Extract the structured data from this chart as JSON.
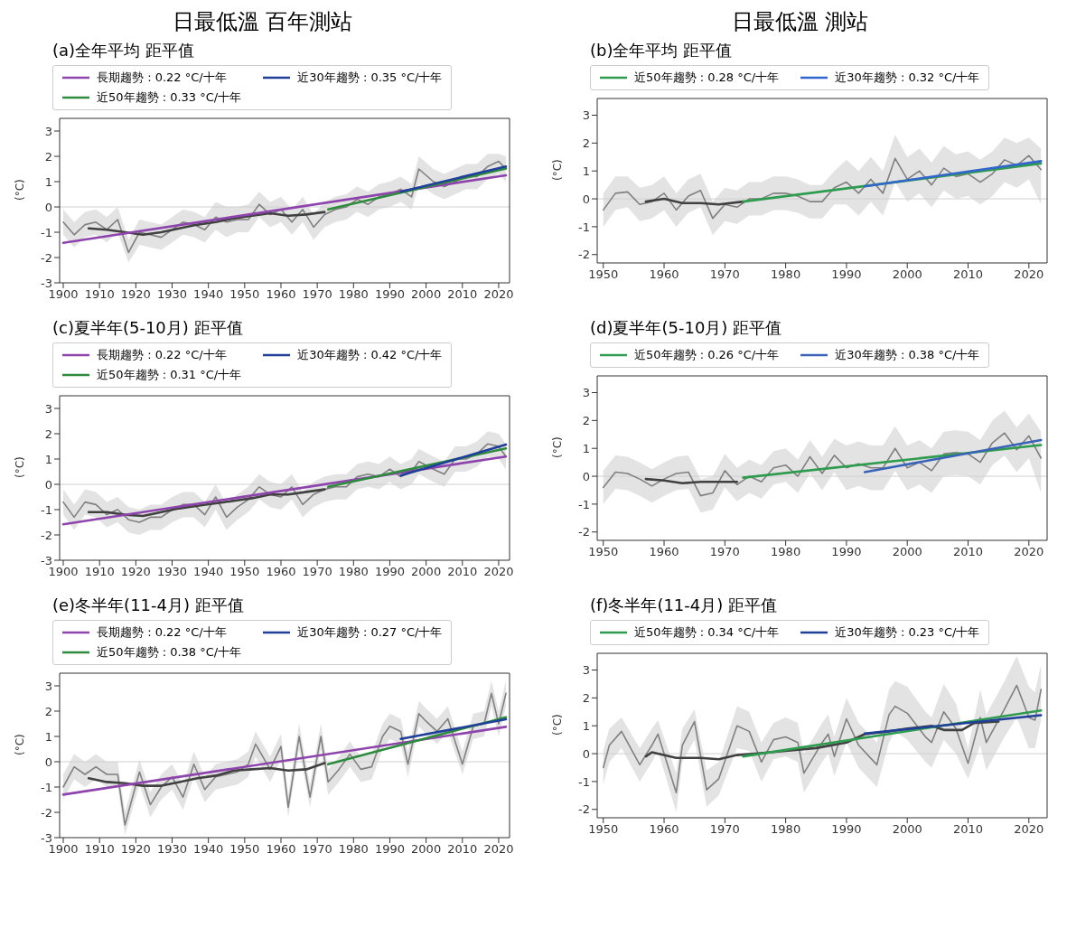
{
  "chart_data": [
    {
      "type": "line",
      "annotations": [
        "日最低溫 百年測站"
      ],
      "title": "(a)全年平均 距平值",
      "ylabel": "(°C)",
      "xlim": [
        1899,
        2023
      ],
      "xticks": [
        1900,
        1910,
        1920,
        1930,
        1940,
        1950,
        1960,
        1970,
        1980,
        1990,
        2000,
        2010,
        2020
      ],
      "ylim": [
        -3,
        3.5
      ],
      "yticks": [
        -3,
        -2,
        -1,
        0,
        1,
        2,
        3
      ],
      "legend": "top",
      "ref_lines": [
        {
          "axis": "y",
          "value": 0,
          "color": "#d0d0d0"
        }
      ],
      "x": [
        1900,
        1903,
        1906,
        1909,
        1912,
        1915,
        1918,
        1921,
        1924,
        1927,
        1930,
        1933,
        1936,
        1939,
        1942,
        1945,
        1948,
        1951,
        1954,
        1957,
        1960,
        1963,
        1966,
        1969,
        1972,
        1975,
        1978,
        1981,
        1984,
        1987,
        1990,
        1993,
        1996,
        1998,
        2002,
        2005,
        2008,
        2011,
        2014,
        2017,
        2020,
        2022
      ],
      "series": [
        {
          "color": "#808080",
          "values": [
            -0.6,
            -1.1,
            -0.7,
            -0.6,
            -0.9,
            -0.5,
            -1.8,
            -1.0,
            -1.1,
            -1.2,
            -0.9,
            -0.6,
            -0.7,
            -0.9,
            -0.4,
            -0.6,
            -0.5,
            -0.5,
            0.1,
            -0.3,
            -0.1,
            -0.6,
            -0.1,
            -0.8,
            -0.3,
            -0.1,
            0.0,
            0.3,
            0.1,
            0.4,
            0.5,
            0.7,
            0.4,
            1.5,
            1.0,
            0.8,
            1.0,
            1.2,
            1.2,
            1.6,
            1.8,
            1.5
          ],
          "lower": [
            -1.1,
            -1.6,
            -1.2,
            -1.1,
            -1.4,
            -1.0,
            -2.2,
            -1.5,
            -1.6,
            -1.7,
            -1.4,
            -1.1,
            -1.2,
            -1.4,
            -0.9,
            -1.2,
            -1.0,
            -1.0,
            -0.4,
            -0.8,
            -0.6,
            -1.1,
            -0.6,
            -1.3,
            -0.8,
            -0.6,
            -0.5,
            -0.2,
            -0.4,
            -0.1,
            0.0,
            0.2,
            -0.1,
            0.9,
            0.5,
            0.3,
            0.5,
            0.7,
            0.7,
            1.1,
            1.3,
            1.0
          ],
          "upper": [
            -0.1,
            -0.6,
            -0.2,
            -0.1,
            -0.4,
            0.0,
            -1.3,
            -0.5,
            -0.6,
            -0.7,
            -0.4,
            -0.1,
            -0.2,
            -0.4,
            0.2,
            0.0,
            0.0,
            0.1,
            0.6,
            0.2,
            0.4,
            -0.1,
            0.4,
            -0.3,
            0.2,
            0.4,
            0.5,
            0.8,
            0.6,
            0.9,
            1.0,
            1.2,
            0.9,
            2.0,
            1.5,
            1.3,
            1.5,
            1.7,
            1.7,
            2.1,
            2.1,
            2.0
          ]
        },
        {
          "color": "#404040",
          "x": [
            1907,
            1912,
            1917,
            1922,
            1927,
            1932,
            1937,
            1942,
            1947,
            1952,
            1957,
            1962,
            1967,
            1972
          ],
          "values": [
            -0.85,
            -0.9,
            -1.0,
            -1.1,
            -1.0,
            -0.85,
            -0.7,
            -0.6,
            -0.45,
            -0.35,
            -0.25,
            -0.35,
            -0.3,
            -0.2
          ]
        },
        {
          "name": "長期趨勢 : 0.22 °C/十年",
          "color": "#8e44ad",
          "x": [
            1900,
            2022
          ],
          "values": [
            -1.42,
            1.25
          ]
        },
        {
          "name": "近50年趨勢 : 0.33 °C/十年",
          "color": "#2e8b3e",
          "x": [
            1973,
            2022
          ],
          "values": [
            -0.1,
            1.52
          ]
        },
        {
          "name": "近30年趨勢 : 0.35 °C/十年",
          "color": "#1f3f99",
          "x": [
            1993,
            2022
          ],
          "values": [
            0.6,
            1.6
          ]
        }
      ]
    },
    {
      "type": "line",
      "annotations": [
        "日最低溫 測站"
      ],
      "title": "(b)全年平均 距平值",
      "ylabel": "(°C)",
      "xlim": [
        1949,
        2023
      ],
      "xticks": [
        1950,
        1960,
        1970,
        1980,
        1990,
        2000,
        2010,
        2020
      ],
      "ylim": [
        -2.3,
        3.6
      ],
      "yticks": [
        -2,
        -1,
        0,
        1,
        2,
        3
      ],
      "legend": "top",
      "ref_lines": [
        {
          "axis": "y",
          "value": 0,
          "color": "#d0d0d0"
        }
      ],
      "x": [
        1950,
        1952,
        1954,
        1956,
        1958,
        1960,
        1962,
        1964,
        1966,
        1968,
        1970,
        1972,
        1974,
        1976,
        1978,
        1980,
        1982,
        1984,
        1986,
        1988,
        1990,
        1992,
        1994,
        1996,
        1998,
        2000,
        2002,
        2004,
        2006,
        2008,
        2010,
        2012,
        2014,
        2016,
        2018,
        2020,
        2022
      ],
      "series": [
        {
          "color": "#808080",
          "values": [
            -0.4,
            0.2,
            0.25,
            -0.2,
            -0.1,
            0.2,
            -0.4,
            0.1,
            0.3,
            -0.7,
            -0.2,
            -0.3,
            0.0,
            0.0,
            0.2,
            0.2,
            0.1,
            -0.1,
            -0.1,
            0.4,
            0.6,
            0.2,
            0.7,
            0.2,
            1.45,
            0.7,
            1.0,
            0.5,
            1.1,
            0.8,
            0.9,
            0.6,
            0.9,
            1.4,
            1.2,
            1.55,
            1.05
          ],
          "lower": [
            -1.0,
            -0.4,
            -0.3,
            -0.8,
            -0.7,
            -0.4,
            -1.0,
            -0.5,
            -0.3,
            -1.3,
            -0.8,
            -0.9,
            -0.6,
            -0.6,
            -0.4,
            -0.4,
            -0.5,
            -0.7,
            -0.7,
            -0.2,
            -0.2,
            -0.6,
            -0.1,
            -0.6,
            0.6,
            -0.1,
            0.2,
            -0.3,
            0.3,
            0.0,
            0.1,
            -0.2,
            0.1,
            0.6,
            0.4,
            0.7,
            -0.2
          ],
          "upper": [
            0.2,
            0.8,
            0.8,
            0.4,
            0.5,
            0.8,
            0.2,
            0.7,
            0.9,
            -0.1,
            0.4,
            0.3,
            0.6,
            0.6,
            0.8,
            0.8,
            0.7,
            0.5,
            0.5,
            1.0,
            1.4,
            1.0,
            1.5,
            1.0,
            2.3,
            1.5,
            1.8,
            1.3,
            1.9,
            1.6,
            1.7,
            1.4,
            1.7,
            2.2,
            2.0,
            2.2,
            1.8
          ]
        },
        {
          "color": "#404040",
          "x": [
            1957,
            1960,
            1963,
            1966,
            1969,
            1973
          ],
          "values": [
            -0.1,
            0.0,
            -0.15,
            -0.15,
            -0.2,
            -0.1
          ]
        },
        {
          "name": "近50年趨勢 : 0.28 °C/十年",
          "color": "#2e9b4f",
          "x": [
            1973,
            2022
          ],
          "values": [
            -0.1,
            1.27
          ]
        },
        {
          "name": "近30年趨勢 : 0.32 °C/十年",
          "color": "#3366cc",
          "x": [
            1993,
            2022
          ],
          "values": [
            0.45,
            1.35
          ]
        }
      ]
    },
    {
      "type": "line",
      "title": "(c)夏半年(5-10月) 距平值",
      "ylabel": "(°C)",
      "xlim": [
        1899,
        2023
      ],
      "xticks": [
        1900,
        1910,
        1920,
        1930,
        1940,
        1950,
        1960,
        1970,
        1980,
        1990,
        2000,
        2010,
        2020
      ],
      "ylim": [
        -3,
        3.5
      ],
      "yticks": [
        -3,
        -2,
        -1,
        0,
        1,
        2,
        3
      ],
      "legend": "top",
      "ref_lines": [
        {
          "axis": "y",
          "value": 0,
          "color": "#d0d0d0"
        }
      ],
      "x": [
        1900,
        1903,
        1906,
        1909,
        1912,
        1915,
        1918,
        1921,
        1924,
        1927,
        1930,
        1933,
        1936,
        1939,
        1942,
        1945,
        1948,
        1951,
        1954,
        1957,
        1960,
        1963,
        1966,
        1969,
        1972,
        1975,
        1978,
        1981,
        1984,
        1987,
        1990,
        1993,
        1996,
        1998,
        2002,
        2005,
        2008,
        2011,
        2014,
        2017,
        2020,
        2022
      ],
      "series": [
        {
          "color": "#808080",
          "values": [
            -0.7,
            -1.3,
            -0.7,
            -0.8,
            -1.2,
            -1.0,
            -1.4,
            -1.5,
            -1.3,
            -1.3,
            -1.0,
            -0.8,
            -0.8,
            -1.2,
            -0.5,
            -1.3,
            -0.9,
            -0.6,
            -0.1,
            -0.4,
            -0.5,
            -0.1,
            -0.8,
            -0.4,
            -0.2,
            -0.1,
            -0.1,
            0.3,
            0.4,
            0.3,
            0.6,
            0.3,
            0.5,
            0.9,
            0.6,
            0.4,
            1.0,
            1.0,
            1.2,
            1.6,
            1.5,
            1.1
          ],
          "lower": [
            -1.2,
            -1.8,
            -1.2,
            -1.3,
            -1.7,
            -1.5,
            -1.9,
            -2.0,
            -1.8,
            -1.8,
            -1.5,
            -1.3,
            -1.3,
            -1.7,
            -1.0,
            -1.8,
            -1.4,
            -1.1,
            -0.6,
            -0.9,
            -1.0,
            -0.6,
            -1.3,
            -0.9,
            -0.7,
            -0.6,
            -0.6,
            -0.2,
            -0.1,
            -0.2,
            0.1,
            -0.2,
            0.0,
            0.4,
            0.1,
            -0.1,
            0.5,
            0.5,
            0.7,
            1.1,
            1.0,
            0.6
          ],
          "upper": [
            -0.2,
            -0.8,
            -0.2,
            -0.3,
            -0.7,
            -0.5,
            -0.9,
            -1.0,
            -0.8,
            -0.8,
            -0.5,
            -0.3,
            -0.3,
            -0.7,
            0.0,
            -0.8,
            -0.4,
            -0.1,
            0.4,
            0.1,
            0.0,
            0.4,
            -0.3,
            0.1,
            0.3,
            0.4,
            0.4,
            0.8,
            0.9,
            0.8,
            1.1,
            0.8,
            1.0,
            1.4,
            1.1,
            0.9,
            1.5,
            1.5,
            1.7,
            2.1,
            2.0,
            1.6
          ]
        },
        {
          "color": "#404040",
          "x": [
            1907,
            1912,
            1917,
            1922,
            1927,
            1932,
            1937,
            1942,
            1947,
            1952,
            1957,
            1962,
            1967,
            1972
          ],
          "values": [
            -1.1,
            -1.1,
            -1.2,
            -1.25,
            -1.1,
            -0.95,
            -0.85,
            -0.75,
            -0.65,
            -0.55,
            -0.4,
            -0.4,
            -0.3,
            -0.2
          ]
        },
        {
          "name": "長期趨勢 : 0.22 °C/十年",
          "color": "#8e44ad",
          "x": [
            1900,
            2022
          ],
          "values": [
            -1.58,
            1.1
          ]
        },
        {
          "name": "近50年趨勢 : 0.31 °C/十年",
          "color": "#2e8b3e",
          "x": [
            1973,
            2022
          ],
          "values": [
            -0.1,
            1.42
          ]
        },
        {
          "name": "近30年趨勢 : 0.42 °C/十年",
          "color": "#1f3f99",
          "x": [
            1993,
            2022
          ],
          "values": [
            0.35,
            1.57
          ]
        }
      ]
    },
    {
      "type": "line",
      "title": "(d)夏半年(5-10月) 距平值",
      "ylabel": "(°C)",
      "xlim": [
        1949,
        2023
      ],
      "xticks": [
        1950,
        1960,
        1970,
        1980,
        1990,
        2000,
        2010,
        2020
      ],
      "ylim": [
        -2.3,
        3.6
      ],
      "yticks": [
        -2,
        -1,
        0,
        1,
        2,
        3
      ],
      "legend": "top",
      "ref_lines": [
        {
          "axis": "y",
          "value": 0,
          "color": "#d0d0d0"
        }
      ],
      "x": [
        1950,
        1952,
        1954,
        1956,
        1958,
        1960,
        1962,
        1964,
        1966,
        1968,
        1970,
        1972,
        1974,
        1976,
        1978,
        1980,
        1982,
        1984,
        1986,
        1988,
        1990,
        1992,
        1994,
        1996,
        1998,
        2000,
        2002,
        2004,
        2006,
        2008,
        2010,
        2012,
        2014,
        2016,
        2018,
        2020,
        2022
      ],
      "series": [
        {
          "color": "#808080",
          "values": [
            -0.4,
            0.15,
            0.1,
            -0.1,
            -0.35,
            -0.1,
            0.1,
            0.15,
            -0.7,
            -0.6,
            0.2,
            -0.3,
            0.0,
            -0.2,
            0.3,
            0.4,
            0.0,
            0.7,
            0.1,
            0.75,
            0.3,
            0.45,
            0.3,
            0.3,
            1.0,
            0.3,
            0.5,
            0.2,
            0.8,
            0.85,
            0.8,
            0.5,
            1.2,
            1.55,
            0.95,
            1.45,
            0.65
          ],
          "lower": [
            -1.0,
            -0.45,
            -0.5,
            -0.7,
            -0.95,
            -0.7,
            -0.5,
            -0.45,
            -1.3,
            -1.2,
            -0.4,
            -0.9,
            -0.6,
            -0.8,
            -0.3,
            -0.2,
            -0.6,
            0.1,
            -0.5,
            0.15,
            -0.5,
            -0.35,
            -0.5,
            -0.5,
            0.2,
            -0.5,
            -0.3,
            -0.6,
            0.0,
            0.05,
            0.0,
            -0.3,
            0.4,
            0.75,
            0.15,
            0.65,
            -0.6
          ],
          "upper": [
            0.2,
            0.75,
            0.7,
            0.5,
            0.25,
            0.5,
            0.7,
            0.75,
            -0.1,
            0.0,
            0.8,
            0.3,
            0.6,
            0.4,
            0.9,
            1.0,
            0.6,
            1.3,
            0.7,
            1.35,
            1.1,
            1.25,
            1.1,
            1.1,
            1.8,
            1.1,
            1.3,
            1.0,
            1.6,
            1.65,
            1.6,
            1.3,
            2.0,
            2.35,
            1.75,
            2.25,
            1.6
          ]
        },
        {
          "color": "#404040",
          "x": [
            1957,
            1960,
            1963,
            1966,
            1969,
            1972
          ],
          "values": [
            -0.1,
            -0.15,
            -0.25,
            -0.2,
            -0.2,
            -0.2
          ]
        },
        {
          "name": "近50年趨勢 : 0.26 °C/十年",
          "color": "#2e9b4f",
          "x": [
            1973,
            2022
          ],
          "values": [
            -0.05,
            1.12
          ]
        },
        {
          "name": "近30年趨勢 : 0.38 °C/十年",
          "color": "#3a63b8",
          "x": [
            1993,
            2022
          ],
          "values": [
            0.15,
            1.3
          ]
        }
      ]
    },
    {
      "type": "line",
      "title": "(e)冬半年(11-4月) 距平值",
      "ylabel": "(°C)",
      "xlim": [
        1899,
        2023
      ],
      "xticks": [
        1900,
        1910,
        1920,
        1930,
        1940,
        1950,
        1960,
        1970,
        1980,
        1990,
        2000,
        2010,
        2020
      ],
      "ylim": [
        -3,
        3.5
      ],
      "yticks": [
        -3,
        -2,
        -1,
        0,
        1,
        2,
        3
      ],
      "legend": "top",
      "ref_lines": [
        {
          "axis": "y",
          "value": 0,
          "color": "#d0d0d0"
        }
      ],
      "x": [
        1900,
        1903,
        1906,
        1909,
        1912,
        1915,
        1917,
        1921,
        1924,
        1927,
        1930,
        1933,
        1936,
        1939,
        1942,
        1945,
        1948,
        1951,
        1953,
        1957,
        1960,
        1962,
        1965,
        1968,
        1971,
        1973,
        1976,
        1979,
        1982,
        1985,
        1988,
        1990,
        1993,
        1995,
        1998,
        2000,
        2003,
        2006,
        2010,
        2013,
        2016,
        2018,
        2020,
        2022
      ],
      "series": [
        {
          "color": "#808080",
          "values": [
            -1.0,
            -0.2,
            -0.5,
            -0.2,
            -0.5,
            -0.5,
            -2.5,
            -0.4,
            -1.7,
            -1.0,
            -0.6,
            -1.4,
            -0.1,
            -1.1,
            -0.6,
            -0.5,
            -0.4,
            -0.1,
            0.7,
            -0.3,
            0.6,
            -1.8,
            1.0,
            -1.4,
            1.0,
            -0.8,
            -0.3,
            0.3,
            -0.3,
            -0.2,
            1.0,
            1.4,
            1.2,
            -0.1,
            1.9,
            1.6,
            1.2,
            1.7,
            -0.1,
            1.4,
            1.5,
            2.7,
            1.5,
            2.7
          ],
          "lower": [
            -1.5,
            -0.7,
            -1.0,
            -0.7,
            -1.0,
            -1.0,
            -2.9,
            -0.9,
            -2.2,
            -1.5,
            -1.1,
            -1.9,
            -0.6,
            -1.6,
            -1.1,
            -1.0,
            -0.9,
            -0.6,
            0.2,
            -0.8,
            0.1,
            -2.2,
            0.5,
            -1.8,
            0.5,
            -1.3,
            -0.8,
            -0.2,
            -0.8,
            -0.7,
            0.5,
            0.9,
            0.7,
            -0.6,
            1.4,
            1.1,
            0.7,
            1.2,
            -0.5,
            0.9,
            1.0,
            2.2,
            1.0,
            2.2
          ],
          "upper": [
            -0.5,
            0.3,
            0.0,
            0.3,
            0.0,
            0.0,
            -2.0,
            0.1,
            -1.2,
            -0.5,
            -0.1,
            -0.9,
            0.4,
            -0.6,
            -0.1,
            0.0,
            0.1,
            0.4,
            1.2,
            0.2,
            1.1,
            -1.3,
            1.5,
            -0.9,
            1.5,
            -0.3,
            0.2,
            0.8,
            0.2,
            0.3,
            1.5,
            1.9,
            1.7,
            0.4,
            2.4,
            2.1,
            1.7,
            2.2,
            0.4,
            1.9,
            2.0,
            3.2,
            2.0,
            3.2
          ]
        },
        {
          "color": "#404040",
          "x": [
            1907,
            1912,
            1917,
            1922,
            1927,
            1932,
            1937,
            1942,
            1947,
            1952,
            1957,
            1962,
            1967,
            1972
          ],
          "values": [
            -0.65,
            -0.8,
            -0.85,
            -0.95,
            -0.95,
            -0.8,
            -0.65,
            -0.55,
            -0.35,
            -0.3,
            -0.25,
            -0.35,
            -0.3,
            -0.05
          ]
        },
        {
          "name": "長期趨勢 : 0.22 °C/十年",
          "color": "#8e44ad",
          "x": [
            1900,
            2022
          ],
          "values": [
            -1.3,
            1.38
          ]
        },
        {
          "name": "近50年趨勢 : 0.38 °C/十年",
          "color": "#2e8b3e",
          "x": [
            1973,
            2022
          ],
          "values": [
            -0.1,
            1.76
          ]
        },
        {
          "name": "近30年趨勢 : 0.27 °C/十年",
          "color": "#1f3f99",
          "x": [
            1993,
            2022
          ],
          "values": [
            0.9,
            1.68
          ]
        }
      ]
    },
    {
      "type": "line",
      "title": "(f)冬半年(11-4月) 距平值",
      "ylabel": "(°C)",
      "xlim": [
        1949,
        2023
      ],
      "xticks": [
        1950,
        1960,
        1970,
        1980,
        1990,
        2000,
        2010,
        2020
      ],
      "ylim": [
        -2.3,
        3.6
      ],
      "yticks": [
        -2,
        -1,
        0,
        1,
        2,
        3
      ],
      "legend": "top",
      "ref_lines": [
        {
          "axis": "y",
          "value": 0,
          "color": "#d0d0d0"
        }
      ],
      "x": [
        1950,
        1951,
        1953,
        1956,
        1958,
        1959,
        1962,
        1963,
        1965,
        1967,
        1969,
        1972,
        1974,
        1976,
        1978,
        1980,
        1982,
        1983,
        1986,
        1987,
        1988,
        1990,
        1992,
        1995,
        1997,
        1998,
        2000,
        2003,
        2004,
        2006,
        2008,
        2010,
        2012,
        2013,
        2016,
        2018,
        2020,
        2021,
        2022
      ],
      "series": [
        {
          "color": "#808080",
          "values": [
            -0.5,
            0.3,
            0.8,
            -0.4,
            0.3,
            0.7,
            -1.4,
            0.3,
            1.15,
            -1.3,
            -0.9,
            1.0,
            0.8,
            -0.3,
            0.5,
            0.6,
            0.4,
            -0.7,
            0.4,
            0.7,
            -0.1,
            1.25,
            0.3,
            -0.4,
            1.4,
            1.7,
            1.45,
            0.6,
            0.4,
            1.5,
            0.9,
            -0.35,
            1.3,
            0.4,
            1.6,
            2.45,
            1.3,
            1.2,
            2.3
          ],
          "lower": [
            -1.1,
            -0.3,
            0.2,
            -1.0,
            -0.3,
            0.1,
            -2.1,
            -0.3,
            0.5,
            -1.9,
            -1.5,
            0.2,
            0.1,
            -1.0,
            -0.2,
            -0.1,
            -0.3,
            -1.4,
            -0.3,
            0.0,
            -0.8,
            0.4,
            -0.5,
            -1.2,
            0.4,
            0.8,
            0.5,
            -0.3,
            -0.5,
            0.5,
            0.0,
            -0.9,
            0.3,
            -0.6,
            0.6,
            1.3,
            0.2,
            0.2,
            1.2
          ],
          "upper": [
            0.1,
            0.9,
            1.3,
            0.2,
            0.9,
            1.2,
            -0.7,
            0.9,
            1.6,
            -0.6,
            -0.3,
            1.7,
            1.5,
            0.4,
            1.1,
            1.3,
            1.1,
            0.0,
            1.1,
            1.4,
            0.6,
            2.0,
            1.1,
            0.4,
            2.3,
            2.6,
            2.4,
            1.5,
            1.3,
            2.5,
            1.8,
            0.2,
            2.3,
            1.4,
            2.6,
            3.5,
            2.4,
            2.2,
            3.2
          ]
        },
        {
          "color": "#404040",
          "x": [
            1957,
            1958,
            1962,
            1966,
            1969,
            1972,
            1975,
            1980,
            1985,
            1990,
            1993,
            1997,
            2000,
            2004,
            2006,
            2009,
            2011,
            2015
          ],
          "values": [
            -0.1,
            0.05,
            -0.15,
            -0.15,
            -0.2,
            -0.05,
            0.0,
            0.1,
            0.2,
            0.4,
            0.7,
            0.8,
            0.9,
            1.0,
            0.85,
            0.85,
            1.1,
            1.15
          ]
        },
        {
          "name": "近50年趨勢 : 0.34 °C/十年",
          "color": "#2e9b4f",
          "x": [
            1973,
            2022
          ],
          "values": [
            -0.1,
            1.55
          ]
        },
        {
          "name": "近30年趨勢 : 0.23 °C/十年",
          "color": "#1f3f99",
          "x": [
            1993,
            2022
          ],
          "values": [
            0.72,
            1.38
          ]
        }
      ]
    }
  ]
}
